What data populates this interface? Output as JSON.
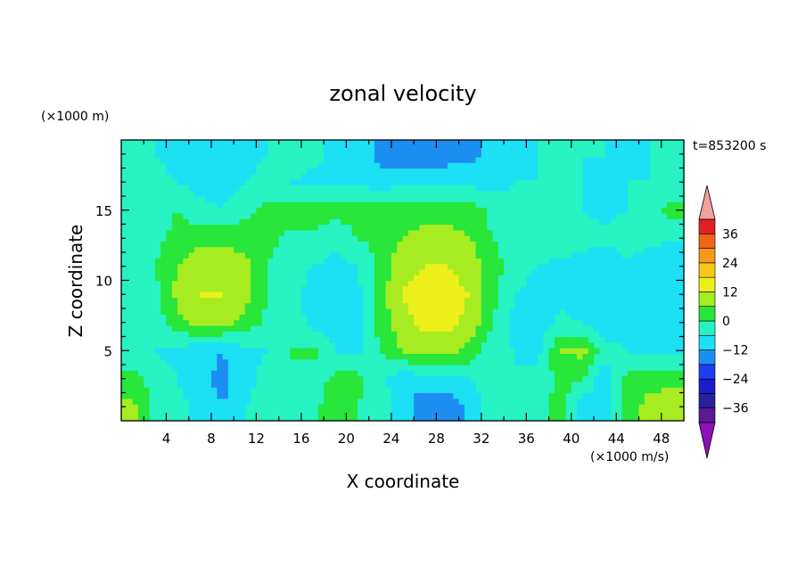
{
  "chart_data": {
    "type": "heatmap",
    "title": "zonal velocity",
    "xlabel": "X coordinate",
    "ylabel": "Z coordinate",
    "x_units": "(×1000 m/s)",
    "y_units": "(×1000 m)",
    "time_label": "t=853200 s",
    "xlim": [
      0,
      50
    ],
    "ylim": [
      0,
      20
    ],
    "x_ticks": [
      4,
      8,
      12,
      16,
      20,
      24,
      28,
      32,
      36,
      40,
      44,
      48
    ],
    "y_ticks": [
      5,
      10,
      15
    ],
    "z_cols_x": [
      1,
      3,
      5,
      7,
      9,
      11,
      13,
      15,
      17,
      19,
      21,
      23,
      25,
      27,
      29,
      31,
      33,
      35,
      37,
      39,
      41,
      43,
      45,
      47,
      49
    ],
    "z_rows_y": [
      1,
      3,
      5,
      7,
      9,
      11,
      13,
      15,
      17,
      19
    ],
    "z": [
      [
        8,
        -2,
        -4,
        -8,
        -12,
        -6,
        -4,
        0,
        -2,
        4,
        0,
        -4,
        -8,
        -18,
        -16,
        -10,
        -2,
        -4,
        -6,
        4,
        -10,
        -8,
        4,
        8,
        10
      ],
      [
        2,
        -2,
        -6,
        -10,
        -14,
        -8,
        -4,
        0,
        -4,
        2,
        2,
        -4,
        -10,
        -8,
        -8,
        -6,
        -4,
        -6,
        -4,
        2,
        0,
        -10,
        2,
        4,
        4
      ],
      [
        -4,
        -6,
        -8,
        -10,
        -12,
        -8,
        -6,
        0,
        2,
        -6,
        -8,
        0,
        6,
        8,
        8,
        4,
        -4,
        -6,
        -8,
        6,
        8,
        -4,
        -6,
        -6,
        -8
      ],
      [
        -6,
        -4,
        4,
        8,
        8,
        4,
        -2,
        -2,
        -8,
        -10,
        -8,
        2,
        10,
        14,
        14,
        10,
        0,
        -8,
        -10,
        -4,
        -6,
        -10,
        -8,
        -10,
        -10
      ],
      [
        -6,
        -2,
        8,
        12,
        12,
        8,
        0,
        -4,
        -8,
        -10,
        -8,
        4,
        12,
        16,
        14,
        12,
        2,
        -6,
        -10,
        -8,
        -10,
        -12,
        -10,
        -10,
        -12
      ],
      [
        -6,
        0,
        6,
        10,
        10,
        8,
        0,
        -4,
        -6,
        -8,
        -6,
        2,
        10,
        12,
        12,
        10,
        2,
        -2,
        -6,
        -8,
        -8,
        -12,
        -8,
        -10,
        -10
      ],
      [
        -2,
        -2,
        2,
        4,
        4,
        4,
        2,
        -2,
        -2,
        -4,
        0,
        2,
        6,
        8,
        8,
        6,
        0,
        -2,
        -2,
        -2,
        -4,
        -4,
        -2,
        -4,
        -6
      ],
      [
        -4,
        -2,
        0,
        -4,
        -6,
        -2,
        2,
        4,
        4,
        2,
        2,
        4,
        4,
        4,
        4,
        4,
        -2,
        -4,
        -4,
        -6,
        -6,
        -8,
        -6,
        -2,
        2
      ],
      [
        -6,
        -4,
        -6,
        -8,
        -8,
        -6,
        -4,
        -6,
        -8,
        -8,
        -6,
        -10,
        -6,
        -8,
        -6,
        -8,
        -8,
        -6,
        -6,
        -4,
        -6,
        -8,
        -6,
        -6,
        -4
      ],
      [
        -4,
        -6,
        -8,
        -8,
        -6,
        -8,
        -6,
        -2,
        -4,
        -8,
        -8,
        -14,
        -18,
        -16,
        -16,
        -14,
        -10,
        -8,
        -6,
        -6,
        -6,
        -6,
        -8,
        -6,
        -4
      ]
    ],
    "colorbar": {
      "levels": [
        -42,
        -36,
        -30,
        -24,
        -18,
        -12,
        -6,
        0,
        6,
        12,
        18,
        24,
        30,
        36,
        42
      ],
      "colors": [
        "#5a1a96",
        "#2a1f9c",
        "#1c1cc8",
        "#1b3ff0",
        "#1c8ef2",
        "#1ce0f4",
        "#26f2c2",
        "#28e63a",
        "#a6ec20",
        "#ecf018",
        "#f8c818",
        "#f89818",
        "#f06418",
        "#e02020"
      ],
      "below_color": "#8e10b8",
      "above_color": "#f2a0a0",
      "tick_labels": [
        "36",
        "24",
        "12",
        "0",
        "−12",
        "−24",
        "−36"
      ],
      "tick_values": [
        36,
        24,
        12,
        0,
        -12,
        -24,
        -36
      ]
    }
  }
}
